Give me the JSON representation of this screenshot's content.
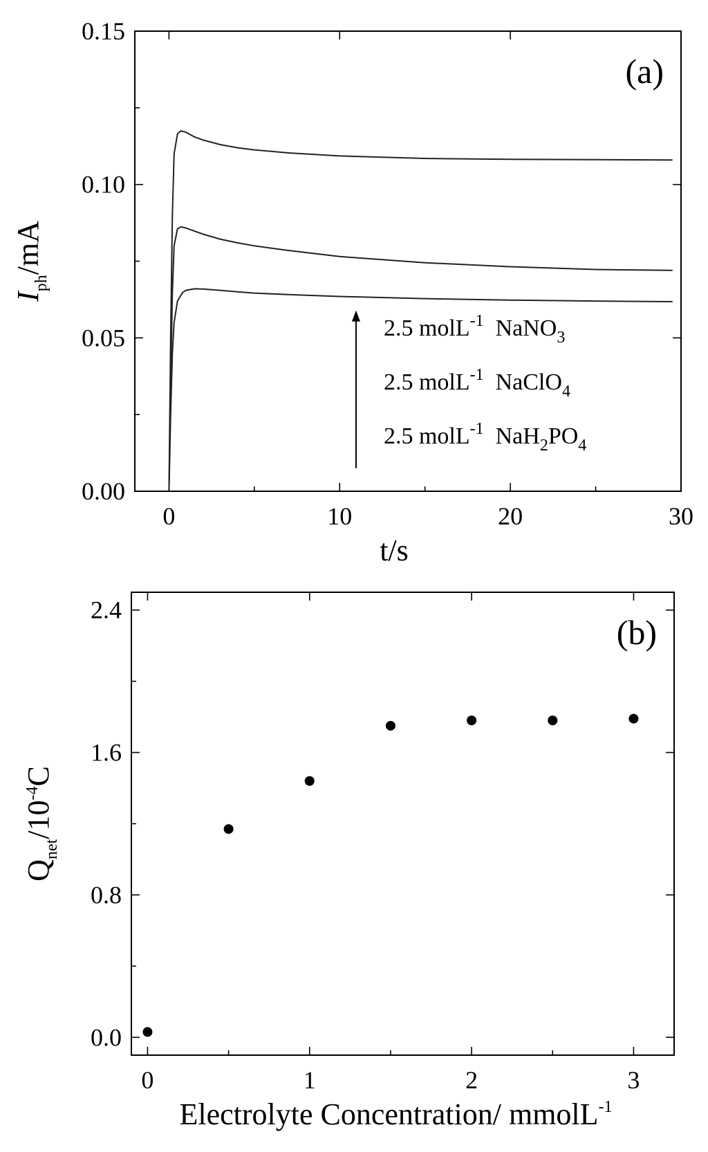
{
  "chart_data": [
    {
      "type": "line",
      "panel_label": "(a)",
      "xlabel": "t/s",
      "ylabel_main": "I",
      "ylabel_sub": "ph",
      "ylabel_tail": "/mA",
      "xlim": [
        -2,
        30
      ],
      "ylim": [
        0,
        0.15
      ],
      "xticks": [
        0,
        10,
        20,
        30
      ],
      "xtick_labels": [
        "0",
        "10",
        "20",
        "30"
      ],
      "yticks": [
        0.0,
        0.05,
        0.1,
        0.15
      ],
      "ytick_labels": [
        "0.00",
        "0.05",
        "0.10",
        "0.15"
      ],
      "series": [
        {
          "name": "2.5 molL-1 NaNO3",
          "x": [
            0,
            0.1,
            0.2,
            0.3,
            0.5,
            0.7,
            1,
            1.5,
            2,
            3,
            4,
            5,
            7,
            10,
            15,
            20,
            25,
            29.5
          ],
          "y": [
            0,
            0.05,
            0.09,
            0.11,
            0.1165,
            0.1175,
            0.117,
            0.1155,
            0.1145,
            0.113,
            0.112,
            0.1113,
            0.1103,
            0.1093,
            0.1085,
            0.1082,
            0.1081,
            0.108
          ]
        },
        {
          "name": "2.5 molL-1 NaClO4",
          "x": [
            0,
            0.1,
            0.2,
            0.3,
            0.5,
            0.7,
            1,
            1.5,
            2,
            3,
            4,
            5,
            7,
            10,
            15,
            20,
            25,
            29.5
          ],
          "y": [
            0,
            0.035,
            0.065,
            0.08,
            0.0855,
            0.0862,
            0.0858,
            0.0848,
            0.0838,
            0.0822,
            0.081,
            0.08,
            0.0785,
            0.0765,
            0.0745,
            0.0732,
            0.0723,
            0.072
          ]
        },
        {
          "name": "2.5 molL-1 NaH2PO4",
          "x": [
            0,
            0.1,
            0.2,
            0.3,
            0.5,
            0.8,
            1,
            1.5,
            2,
            3,
            4,
            5,
            7,
            10,
            15,
            20,
            25,
            29.5
          ],
          "y": [
            0,
            0.025,
            0.045,
            0.055,
            0.062,
            0.0648,
            0.0655,
            0.066,
            0.0659,
            0.0655,
            0.065,
            0.0646,
            0.0641,
            0.0635,
            0.0628,
            0.0623,
            0.062,
            0.0618
          ]
        }
      ],
      "legend": [
        {
          "prefix": "2.5 molL",
          "sup": "-1",
          "formula": [
            [
              "NaNO",
              ""
            ],
            [
              "3",
              "sub"
            ]
          ]
        },
        {
          "prefix": "2.5 molL",
          "sup": "-1",
          "formula": [
            [
              "NaClO",
              ""
            ],
            [
              "4",
              "sub"
            ]
          ]
        },
        {
          "prefix": "2.5 molL",
          "sup": "-1",
          "formula": [
            [
              "NaH",
              ""
            ],
            [
              "2",
              "sub"
            ],
            [
              "PO",
              ""
            ],
            [
              "4",
              "sub"
            ]
          ]
        }
      ]
    },
    {
      "type": "scatter",
      "panel_label": "(b)",
      "xlabel": "Electrolyte Concentration/ mmolL",
      "xlabel_sup": "-1",
      "ylabel_main": "Q",
      "ylabel_sub": "net",
      "ylabel_mid": "/10",
      "ylabel_sup": "-4",
      "ylabel_tail": "C",
      "xlim": [
        -0.1,
        3.25
      ],
      "ylim": [
        -0.1,
        2.5
      ],
      "xticks": [
        0,
        1,
        2,
        3
      ],
      "xtick_labels": [
        "0",
        "1",
        "2",
        "3"
      ],
      "yticks": [
        0.0,
        0.8,
        1.6,
        2.4
      ],
      "ytick_labels": [
        "0.0",
        "0.8",
        "1.6",
        "2.4"
      ],
      "x": [
        0,
        0.5,
        1,
        1.5,
        2,
        2.5,
        3
      ],
      "y": [
        0.03,
        1.17,
        1.44,
        1.75,
        1.78,
        1.78,
        1.79
      ]
    }
  ]
}
